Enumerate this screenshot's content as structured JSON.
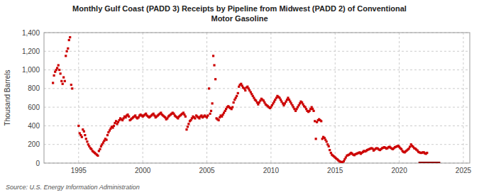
{
  "chart_data": {
    "type": "scatter",
    "title": "Monthly Gulf Coast (PADD 3) Receipts by Pipeline from Midwest (PADD 2) of Conventional\nMotor Gasoline",
    "ylabel": "Thousand Barrels",
    "source": "Source: U.S. Energy Information Administration",
    "color": "#cc0000",
    "marker": "square",
    "grid": true,
    "xlim": [
      1992.3,
      2025.5
    ],
    "ylim": [
      0,
      1400
    ],
    "xticks": [
      1995,
      2000,
      2005,
      2010,
      2015,
      2020,
      2025
    ],
    "yticks": [
      0,
      200,
      400,
      600,
      800,
      {
        "value": 1000,
        "label": "1,000"
      },
      {
        "value": 1200,
        "label": "1,200"
      },
      {
        "value": 1400,
        "label": "1,400"
      }
    ],
    "bar": {
      "start": 2021.5,
      "end": 2023.2,
      "y": 0,
      "height": 15,
      "color": "#8b0000"
    },
    "x": [
      1993.0,
      1993.08,
      1993.17,
      1993.25,
      1993.33,
      1993.42,
      1993.5,
      1993.58,
      1993.67,
      1993.75,
      1993.83,
      1993.92,
      1994.0,
      1994.08,
      1994.17,
      1994.25,
      1994.33,
      1994.42,
      1994.5,
      1995.0,
      1995.08,
      1995.17,
      1995.25,
      1995.33,
      1995.42,
      1995.5,
      1995.58,
      1995.67,
      1995.75,
      1995.83,
      1995.92,
      1996.0,
      1996.08,
      1996.17,
      1996.25,
      1996.33,
      1996.42,
      1996.5,
      1996.58,
      1996.67,
      1996.75,
      1996.83,
      1996.92,
      1997.0,
      1997.08,
      1997.17,
      1997.25,
      1997.33,
      1997.42,
      1997.5,
      1997.58,
      1997.67,
      1997.75,
      1997.83,
      1997.92,
      1998.0,
      1998.08,
      1998.17,
      1998.25,
      1998.33,
      1998.42,
      1998.5,
      1998.58,
      1998.67,
      1998.75,
      1998.83,
      1998.92,
      1999.0,
      1999.08,
      1999.17,
      1999.25,
      1999.33,
      1999.42,
      1999.5,
      1999.58,
      1999.67,
      1999.75,
      1999.83,
      1999.92,
      2000.0,
      2000.08,
      2000.17,
      2000.25,
      2000.33,
      2000.42,
      2000.5,
      2000.58,
      2000.67,
      2000.75,
      2000.83,
      2000.92,
      2001.0,
      2001.08,
      2001.17,
      2001.25,
      2001.33,
      2001.42,
      2001.5,
      2001.58,
      2001.67,
      2001.75,
      2001.83,
      2001.92,
      2002.0,
      2002.08,
      2002.17,
      2002.25,
      2002.33,
      2002.42,
      2002.5,
      2002.58,
      2002.67,
      2002.75,
      2002.83,
      2002.92,
      2003.0,
      2003.08,
      2003.17,
      2003.25,
      2003.33,
      2003.42,
      2003.5,
      2003.58,
      2003.67,
      2003.75,
      2003.83,
      2003.92,
      2004.0,
      2004.08,
      2004.17,
      2004.25,
      2004.33,
      2004.42,
      2004.5,
      2004.58,
      2004.67,
      2004.75,
      2004.83,
      2004.92,
      2005.0,
      2005.08,
      2005.17,
      2005.25,
      2005.33,
      2005.42,
      2005.5,
      2005.58,
      2005.67,
      2005.75,
      2005.83,
      2005.92,
      2006.0,
      2006.08,
      2006.17,
      2006.25,
      2006.33,
      2006.42,
      2006.5,
      2006.58,
      2006.67,
      2006.75,
      2006.83,
      2006.92,
      2007.0,
      2007.08,
      2007.17,
      2007.25,
      2007.33,
      2007.42,
      2007.5,
      2007.58,
      2007.67,
      2007.75,
      2007.83,
      2007.92,
      2008.0,
      2008.08,
      2008.17,
      2008.25,
      2008.33,
      2008.42,
      2008.5,
      2008.58,
      2008.67,
      2008.75,
      2008.83,
      2008.92,
      2009.0,
      2009.08,
      2009.17,
      2009.25,
      2009.33,
      2009.42,
      2009.5,
      2009.58,
      2009.67,
      2009.75,
      2009.83,
      2009.92,
      2010.0,
      2010.08,
      2010.17,
      2010.25,
      2010.33,
      2010.42,
      2010.5,
      2010.58,
      2010.67,
      2010.75,
      2010.83,
      2010.92,
      2011.0,
      2011.08,
      2011.17,
      2011.25,
      2011.33,
      2011.42,
      2011.5,
      2011.58,
      2011.67,
      2011.75,
      2011.83,
      2011.92,
      2012.0,
      2012.08,
      2012.17,
      2012.25,
      2012.33,
      2012.42,
      2012.5,
      2012.58,
      2012.67,
      2012.75,
      2012.83,
      2012.92,
      2013.0,
      2013.08,
      2013.17,
      2013.25,
      2013.33,
      2013.42,
      2013.5,
      2013.58,
      2013.67,
      2013.75,
      2013.83,
      2013.92,
      2014.0,
      2014.08,
      2014.17,
      2014.25,
      2014.33,
      2014.42,
      2014.5,
      2014.58,
      2014.67,
      2014.75,
      2014.83,
      2014.92,
      2015.0,
      2015.08,
      2015.17,
      2015.25,
      2015.33,
      2015.42,
      2015.5,
      2015.58,
      2015.67,
      2015.75,
      2015.83,
      2015.92,
      2016.0,
      2016.08,
      2016.17,
      2016.25,
      2016.33,
      2016.42,
      2016.5,
      2016.58,
      2016.67,
      2016.75,
      2016.83,
      2016.92,
      2017.0,
      2017.08,
      2017.17,
      2017.25,
      2017.33,
      2017.42,
      2017.5,
      2017.58,
      2017.67,
      2017.75,
      2017.83,
      2017.92,
      2018.0,
      2018.08,
      2018.17,
      2018.25,
      2018.33,
      2018.42,
      2018.5,
      2018.58,
      2018.67,
      2018.75,
      2018.83,
      2018.92,
      2019.0,
      2019.08,
      2019.17,
      2019.25,
      2019.33,
      2019.42,
      2019.5,
      2019.58,
      2019.67,
      2019.75,
      2019.83,
      2019.92,
      2020.0,
      2020.08,
      2020.17,
      2020.25,
      2020.33,
      2020.42,
      2020.5,
      2020.58,
      2020.67,
      2020.75,
      2020.83,
      2020.92,
      2021.0,
      2021.08,
      2021.17,
      2021.25,
      2021.33,
      2021.42,
      2021.5,
      2021.58,
      2021.67,
      2021.75,
      2021.83,
      2021.92,
      2022.0,
      2022.08,
      2022.17
    ],
    "values": [
      860,
      940,
      980,
      1000,
      1020,
      1050,
      1000,
      960,
      880,
      850,
      920,
      880,
      1150,
      1200,
      1230,
      1320,
      1350,
      840,
      800,
      400,
      320,
      300,
      280,
      360,
      340,
      300,
      260,
      230,
      200,
      180,
      160,
      150,
      130,
      120,
      110,
      100,
      90,
      80,
      130,
      150,
      180,
      200,
      220,
      240,
      260,
      250,
      300,
      330,
      350,
      370,
      390,
      380,
      400,
      430,
      450,
      420,
      440,
      460,
      480,
      470,
      460,
      480,
      500,
      490,
      510,
      520,
      500,
      460,
      470,
      480,
      490,
      500,
      510,
      490,
      480,
      490,
      510,
      520,
      510,
      500,
      510,
      520,
      530,
      510,
      500,
      490,
      500,
      510,
      520,
      530,
      510,
      490,
      500,
      510,
      520,
      530,
      540,
      520,
      510,
      500,
      490,
      470,
      480,
      500,
      510,
      520,
      530,
      540,
      530,
      510,
      500,
      490,
      480,
      500,
      510,
      520,
      530,
      540,
      520,
      500,
      360,
      390,
      420,
      450,
      460,
      480,
      500,
      490,
      480,
      510,
      500,
      490,
      480,
      500,
      510,
      490,
      500,
      510,
      500,
      490,
      510,
      800,
      530,
      560,
      640,
      1150,
      1050,
      900,
      480,
      470,
      460,
      490,
      510,
      500,
      520,
      540,
      560,
      580,
      600,
      610,
      600,
      590,
      580,
      600,
      650,
      680,
      700,
      720,
      750,
      820,
      840,
      850,
      830,
      810,
      800,
      780,
      810,
      820,
      800,
      780,
      760,
      740,
      720,
      700,
      680,
      670,
      650,
      630,
      650,
      670,
      690,
      680,
      670,
      650,
      630,
      620,
      610,
      600,
      590,
      600,
      620,
      640,
      660,
      680,
      700,
      720,
      710,
      700,
      680,
      660,
      640,
      620,
      640,
      660,
      680,
      700,
      680,
      660,
      640,
      620,
      600,
      580,
      560,
      580,
      600,
      620,
      640,
      660,
      650,
      630,
      610,
      600,
      580,
      560,
      550,
      560,
      580,
      600,
      580,
      560,
      450,
      260,
      440,
      460,
      470,
      460,
      450,
      260,
      280,
      270,
      250,
      230,
      200,
      180,
      140,
      110,
      90,
      80,
      70,
      60,
      50,
      40,
      30,
      20,
      15,
      10,
      8,
      20,
      40,
      60,
      80,
      85,
      90,
      100,
      110,
      100,
      90,
      85,
      95,
      100,
      105,
      110,
      115,
      100,
      110,
      120,
      130,
      125,
      130,
      140,
      145,
      150,
      155,
      160,
      155,
      135,
      145,
      155,
      160,
      155,
      145,
      140,
      150,
      160,
      165,
      170,
      165,
      155,
      160,
      170,
      175,
      165,
      155,
      150,
      160,
      170,
      175,
      180,
      185,
      175,
      160,
      150,
      130,
      120,
      115,
      125,
      135,
      145,
      155,
      175,
      200,
      185,
      175,
      160,
      155,
      145,
      135,
      120,
      115,
      110,
      110,
      115,
      115,
      105,
      100,
      110
    ]
  }
}
